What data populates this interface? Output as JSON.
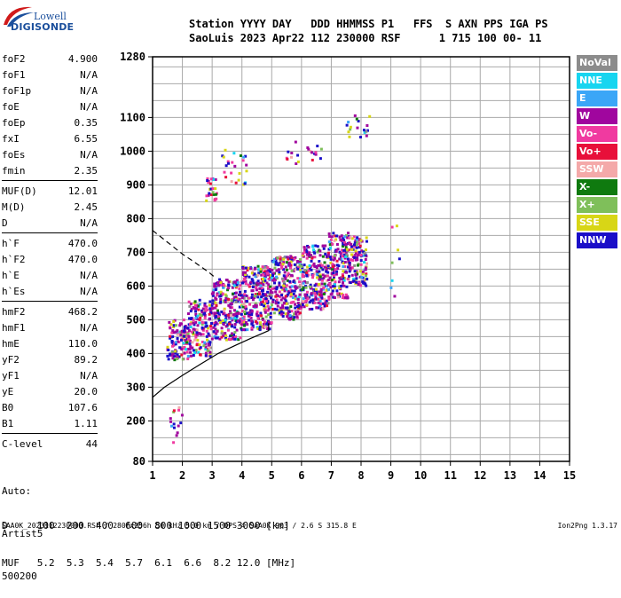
{
  "logo": {
    "line1": "Lowell",
    "line2": "DIGISONDE"
  },
  "header": {
    "line1": "Station YYYY DAY   DDD HHMMSS P1   FFS  S AXN PPS IGA PS",
    "line2": "SaoLuis 2023 Apr22 112 230000 RSF      1 715 100 00- 11"
  },
  "params": [
    {
      "k": "foF2",
      "v": "4.900"
    },
    {
      "k": "foF1",
      "v": "N/A"
    },
    {
      "k": "foF1p",
      "v": "N/A"
    },
    {
      "k": "foE",
      "v": "N/A"
    },
    {
      "k": "foEp",
      "v": "0.35"
    },
    {
      "k": "fxI",
      "v": "6.55"
    },
    {
      "k": "foEs",
      "v": "N/A"
    },
    {
      "k": "fmin",
      "v": "2.35"
    },
    {
      "k": "MUF(D)",
      "v": "12.01"
    },
    {
      "k": "M(D)",
      "v": "2.45"
    },
    {
      "k": "D",
      "v": "N/A"
    },
    {
      "k": "h`F",
      "v": "470.0"
    },
    {
      "k": "h`F2",
      "v": "470.0"
    },
    {
      "k": "h`E",
      "v": "N/A"
    },
    {
      "k": "h`Es",
      "v": "N/A"
    },
    {
      "k": "hmF2",
      "v": "468.2"
    },
    {
      "k": "hmF1",
      "v": "N/A"
    },
    {
      "k": "hmE",
      "v": "110.0"
    },
    {
      "k": "yF2",
      "v": "89.2"
    },
    {
      "k": "yF1",
      "v": "N/A"
    },
    {
      "k": "yE",
      "v": "20.0"
    },
    {
      "k": "B0",
      "v": "107.6"
    },
    {
      "k": "B1",
      "v": "1.11"
    },
    {
      "k": "C-level",
      "v": "44"
    }
  ],
  "auto": {
    "line1": "Auto:",
    "line2": "Artist5",
    "line3": "500200"
  },
  "legend": [
    {
      "label": "NoVal",
      "color": "#8c8c8c"
    },
    {
      "label": "NNE",
      "color": "#17d5f0"
    },
    {
      "label": "E",
      "color": "#3ba6f7"
    },
    {
      "label": "W",
      "color": "#a0069e"
    },
    {
      "label": "Vo-",
      "color": "#f03aa0"
    },
    {
      "label": "Vo+",
      "color": "#e8103a"
    },
    {
      "label": "SSW",
      "color": "#f4a9a9"
    },
    {
      "label": "X-",
      "color": "#0f7a0f"
    },
    {
      "label": "X+",
      "color": "#7fbf5a"
    },
    {
      "label": "SSE",
      "color": "#d8d616"
    },
    {
      "label": "NNW",
      "color": "#1a0ec8"
    }
  ],
  "muf_table": {
    "row1": "D     100  200  400  600  800 1000 1500 3000 [km]",
    "row2": "MUF   5.2  5.3  5.4  5.7  6.1  6.6  8.2 12.0 [MHz]"
  },
  "footer": {
    "left": "SAA0K_2023112230000.RSF / 280fx256h 50 kHz 5.0 km / DPS-4 SAA0K 903 / 2.6 S 315.8 E",
    "right": "Ion2Png 1.3.17"
  },
  "chart_data": {
    "type": "scatter",
    "title": "",
    "xlabel": "",
    "ylabel": "",
    "xlim": [
      1,
      15
    ],
    "ylim": [
      80,
      1280
    ],
    "xticks": [
      1,
      2,
      3,
      4,
      5,
      6,
      7,
      8,
      9,
      10,
      11,
      12,
      13,
      14,
      15
    ],
    "yticks": [
      80,
      200,
      300,
      400,
      500,
      600,
      700,
      800,
      900,
      1000,
      1100,
      1280
    ],
    "grid": true,
    "legend_position": "right",
    "clusters": [
      {
        "x": [
          1.5,
          2.2
        ],
        "y": [
          380,
          500
        ],
        "n": 120
      },
      {
        "x": [
          2.2,
          3.0
        ],
        "y": [
          390,
          560
        ],
        "n": 160
      },
      {
        "x": [
          3.0,
          4.0
        ],
        "y": [
          440,
          620
        ],
        "n": 260
      },
      {
        "x": [
          4.0,
          5.0
        ],
        "y": [
          470,
          660
        ],
        "n": 280
      },
      {
        "x": [
          5.0,
          6.0
        ],
        "y": [
          500,
          690
        ],
        "n": 260
      },
      {
        "x": [
          6.0,
          6.9
        ],
        "y": [
          530,
          720
        ],
        "n": 220
      },
      {
        "x": [
          6.9,
          7.6
        ],
        "y": [
          560,
          760
        ],
        "n": 180
      },
      {
        "x": [
          7.6,
          8.2
        ],
        "y": [
          600,
          750
        ],
        "n": 120
      },
      {
        "x": [
          2.8,
          3.2
        ],
        "y": [
          850,
          920
        ],
        "n": 25
      },
      {
        "x": [
          3.3,
          4.2
        ],
        "y": [
          900,
          1010
        ],
        "n": 25
      },
      {
        "x": [
          5.5,
          6.9
        ],
        "y": [
          960,
          1030
        ],
        "n": 20
      },
      {
        "x": [
          7.5,
          8.3
        ],
        "y": [
          1040,
          1110
        ],
        "n": 18
      },
      {
        "x": [
          1.6,
          2.0
        ],
        "y": [
          130,
          260
        ],
        "n": 15
      },
      {
        "x": [
          9.0,
          9.3
        ],
        "y": [
          560,
          800
        ],
        "n": 8
      }
    ],
    "profile_dashed": {
      "x": [
        1.0,
        1.5,
        2.0,
        2.5,
        2.9,
        3.1
      ],
      "y": [
        765,
        730,
        695,
        665,
        640,
        625
      ]
    },
    "profile_solid": {
      "x": [
        1.0,
        1.4,
        2.0,
        2.6,
        3.2,
        3.8,
        4.3,
        4.7,
        4.9,
        4.9
      ],
      "y": [
        270,
        300,
        335,
        368,
        400,
        425,
        445,
        460,
        468,
        490
      ]
    }
  }
}
